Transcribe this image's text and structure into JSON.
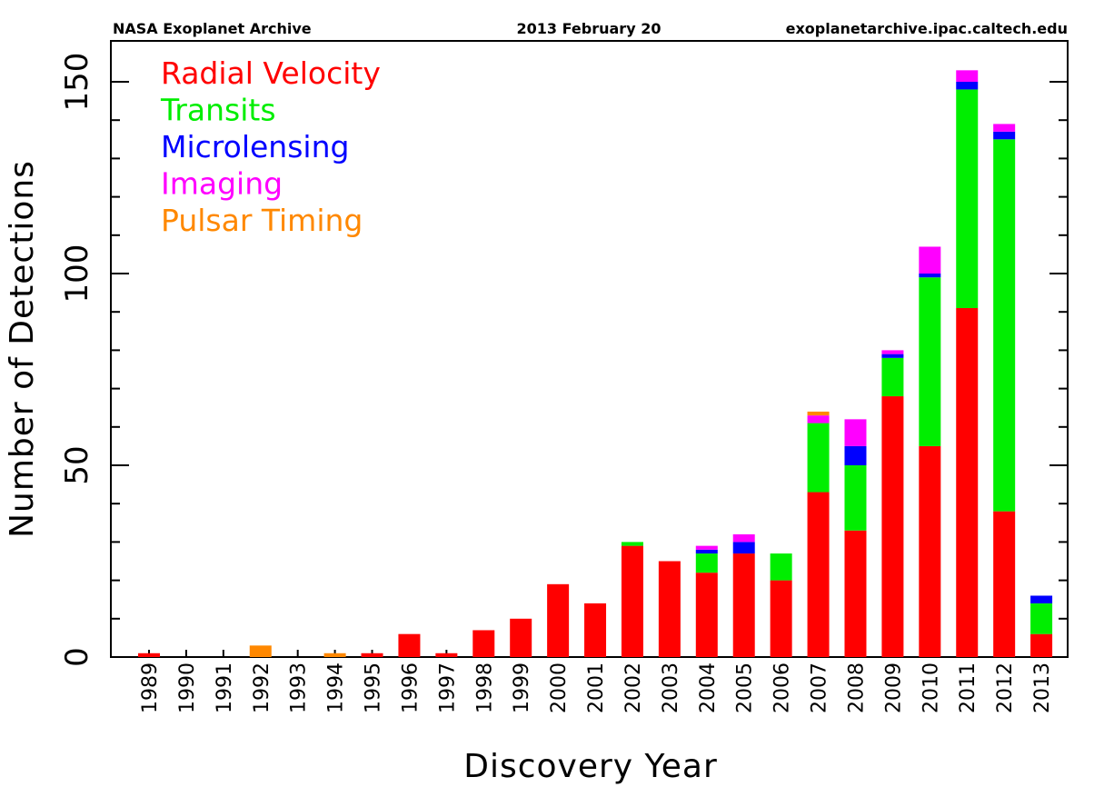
{
  "header": {
    "left": "NASA Exoplanet Archive",
    "center": "2013 February 20",
    "right": "exoplanetarchive.ipac.caltech.edu"
  },
  "chart_data": {
    "type": "bar",
    "stacked": true,
    "xlabel": "Discovery Year",
    "ylabel": "Number of Detections",
    "ylim": [
      0,
      160
    ],
    "yticks": [
      0,
      50,
      100,
      150
    ],
    "grid": false,
    "legend_position": "top-left",
    "categories": [
      "1989",
      "1990",
      "1991",
      "1992",
      "1993",
      "1994",
      "1995",
      "1996",
      "1997",
      "1998",
      "1999",
      "2000",
      "2001",
      "2002",
      "2003",
      "2004",
      "2005",
      "2006",
      "2007",
      "2008",
      "2009",
      "2010",
      "2011",
      "2012",
      "2013"
    ],
    "series": [
      {
        "name": "Radial Velocity",
        "color": "#ff0000",
        "values": [
          1,
          0,
          0,
          0,
          0,
          0,
          1,
          6,
          1,
          7,
          10,
          19,
          14,
          29,
          25,
          22,
          27,
          20,
          43,
          33,
          68,
          55,
          91,
          38,
          6
        ]
      },
      {
        "name": "Transits",
        "color": "#00ee00",
        "values": [
          0,
          0,
          0,
          0,
          0,
          0,
          0,
          0,
          0,
          0,
          0,
          0,
          0,
          1,
          0,
          5,
          0,
          7,
          18,
          17,
          10,
          44,
          57,
          97,
          8
        ]
      },
      {
        "name": "Microlensing",
        "color": "#0000ff",
        "values": [
          0,
          0,
          0,
          0,
          0,
          0,
          0,
          0,
          0,
          0,
          0,
          0,
          0,
          0,
          0,
          1,
          3,
          0,
          0,
          5,
          1,
          1,
          2,
          2,
          2
        ]
      },
      {
        "name": "Imaging",
        "color": "#ff00ff",
        "values": [
          0,
          0,
          0,
          0,
          0,
          0,
          0,
          0,
          0,
          0,
          0,
          0,
          0,
          0,
          0,
          1,
          2,
          0,
          2,
          7,
          1,
          7,
          3,
          2,
          0
        ]
      },
      {
        "name": "Pulsar Timing",
        "color": "#ff8800",
        "values": [
          0,
          0,
          0,
          3,
          0,
          1,
          0,
          0,
          0,
          0,
          0,
          0,
          0,
          0,
          0,
          0,
          0,
          0,
          1,
          0,
          0,
          0,
          0,
          0,
          0
        ]
      }
    ]
  }
}
